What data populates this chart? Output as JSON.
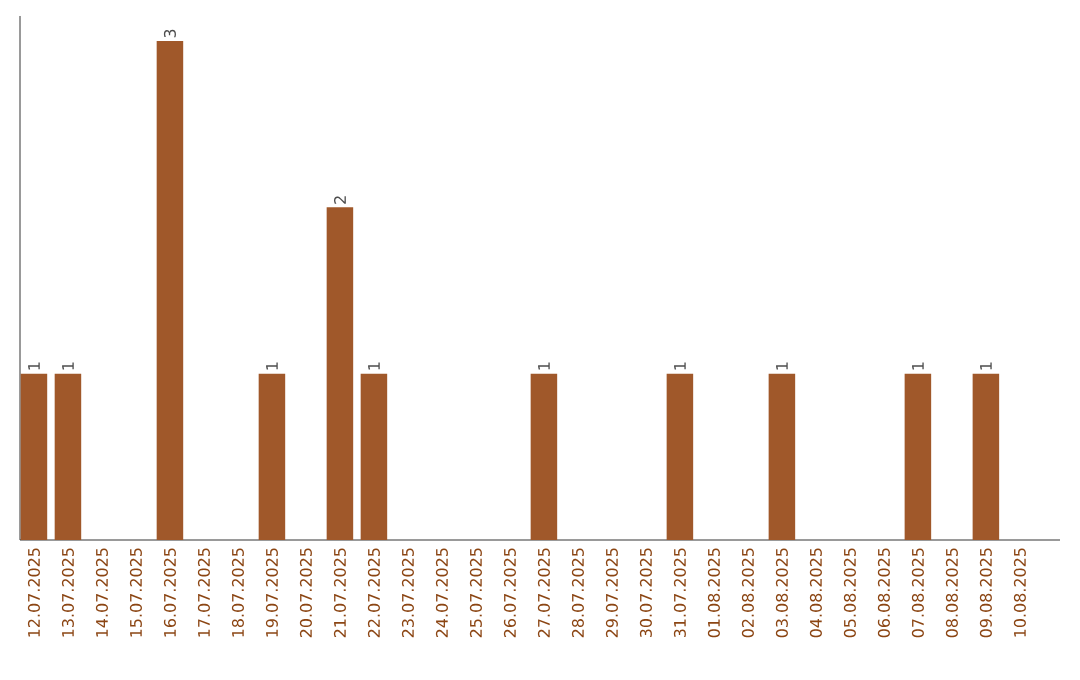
{
  "chart_data": {
    "type": "bar",
    "categories": [
      "12.07.2025",
      "13.07.2025",
      "14.07.2025",
      "15.07.2025",
      "16.07.2025",
      "17.07.2025",
      "18.07.2025",
      "19.07.2025",
      "20.07.2025",
      "21.07.2025",
      "22.07.2025",
      "23.07.2025",
      "24.07.2025",
      "25.07.2025",
      "26.07.2025",
      "27.07.2025",
      "28.07.2025",
      "29.07.2025",
      "30.07.2025",
      "31.07.2025",
      "01.08.2025",
      "02.08.2025",
      "03.08.2025",
      "04.08.2025",
      "05.08.2025",
      "06.08.2025",
      "07.08.2025",
      "08.08.2025",
      "09.08.2025",
      "10.08.2025"
    ],
    "values": [
      1,
      1,
      0,
      0,
      3,
      0,
      0,
      1,
      0,
      2,
      1,
      0,
      0,
      0,
      0,
      1,
      0,
      0,
      0,
      1,
      0,
      0,
      1,
      0,
      0,
      0,
      1,
      0,
      1,
      0
    ],
    "value_labels": [
      "1",
      "1",
      null,
      null,
      "3",
      null,
      null,
      "1",
      null,
      "2",
      "1",
      null,
      null,
      null,
      null,
      "1",
      null,
      null,
      null,
      "1",
      null,
      null,
      "1",
      null,
      null,
      null,
      "1",
      null,
      "1",
      null
    ],
    "color": "#a0582a",
    "ylim": [
      0,
      3.15
    ]
  }
}
